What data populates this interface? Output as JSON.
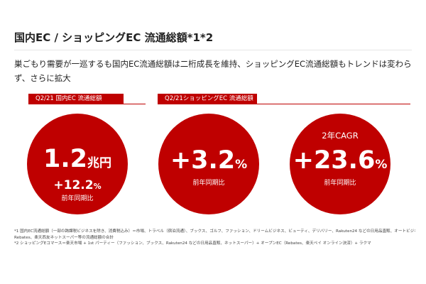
{
  "title": "国内EC / ショッピングEC 流通総額*1*2",
  "subtitle": "巣ごもり需要が一巡するも国内EC流通総額は二桁成長を維持、ショッピングEC流通総額もトレンドは変わらず、さらに拡大",
  "panels": [
    {
      "header": "Q2/21 国内EC 流通総額",
      "main_number": "1.2",
      "main_unit": "兆円",
      "secondary_number": "+12.2",
      "secondary_unit": "%",
      "caption": "前年同期比"
    },
    {
      "header": "Q2/21ショッピングEC 流通総額",
      "main_number": "+3.2",
      "main_unit": "%",
      "caption": "前年同期比"
    },
    {
      "top_label": "2年CAGR",
      "main_number": "+23.6",
      "main_unit": "%",
      "caption": "前年同期比"
    }
  ],
  "footnotes": {
    "note1_line1": "*1 国内EC流通総額（一部の跨課税ビジネスを除き、消費税込み）＝市場、トラベル（宿泊流通）、ブックス、ゴルフ、ファッション、ドリームビジネス、ビューティ、デリバリー、Rakuten24 などの日用品直販、オートビジネス、ラクマ、",
    "note1_line2": "Rebates、楽天西友ネットスーパー等の流通総額の合計",
    "note2": "*2 ショッピングEコマース＝楽天市場 + 1st パーティー（ファッション、ブックス、Rakuten24 などの日用品直販、ネットスーパー）+ オープンEC（Rebates、楽天ペイ オンライン決済）+ ラクマ"
  },
  "colors": {
    "accent": "#bf0000",
    "text": "#222222",
    "background": "#ffffff"
  }
}
